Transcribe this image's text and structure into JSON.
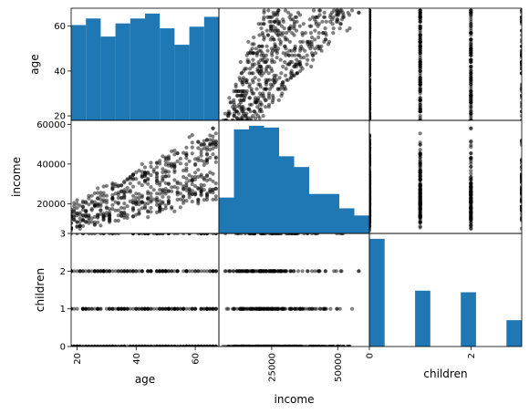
{
  "chart_data": {
    "type": "scatter_matrix",
    "variables": [
      "age",
      "income",
      "children"
    ],
    "hist_color": "#1f77b4",
    "point_color": "#000000",
    "point_alpha": 0.5,
    "ranges": {
      "age": [
        18,
        68
      ],
      "income": [
        5000,
        62000
      ],
      "children": [
        0,
        3
      ]
    },
    "ticks": {
      "age": {
        "values": [
          20,
          40,
          60
        ],
        "labels": [
          "20",
          "40",
          "60"
        ]
      },
      "income": {
        "values": [
          20000,
          40000,
          60000
        ],
        "labels": [
          "20000",
          "40000",
          "60000"
        ]
      },
      "income_bottom": {
        "values": [
          25000,
          50000
        ],
        "labels": [
          "25000",
          "50000"
        ]
      },
      "children": {
        "values": [
          0,
          1,
          2,
          3
        ],
        "labels": [
          "0",
          "1",
          "2",
          "3"
        ]
      },
      "children_bottom": {
        "values": [
          0,
          2
        ],
        "labels": [
          "0",
          "2"
        ]
      }
    },
    "histograms": {
      "age": {
        "bins": [
          18,
          23,
          28,
          33,
          38,
          43,
          48,
          53,
          58,
          63,
          68
        ],
        "counts": [
          58,
          62,
          51,
          59,
          62,
          65,
          56,
          46,
          57,
          63
        ]
      },
      "income": {
        "bins": [
          5000,
          10700,
          16400,
          22100,
          27800,
          33500,
          39200,
          44900,
          50600,
          56300,
          62000
        ],
        "counts": [
          20,
          58,
          60,
          59,
          43,
          37,
          22,
          22,
          14,
          10
        ]
      },
      "children": {
        "bins": [
          0,
          0.3,
          0.6,
          0.9,
          1.2,
          1.5,
          1.8,
          2.1,
          2.4,
          2.7,
          3.0
        ],
        "counts": [
          135,
          0,
          0,
          70,
          0,
          0,
          68,
          0,
          0,
          33
        ]
      }
    },
    "xlabels": [
      "age",
      "income",
      "children"
    ],
    "ylabels": [
      "age",
      "income",
      "children"
    ]
  }
}
